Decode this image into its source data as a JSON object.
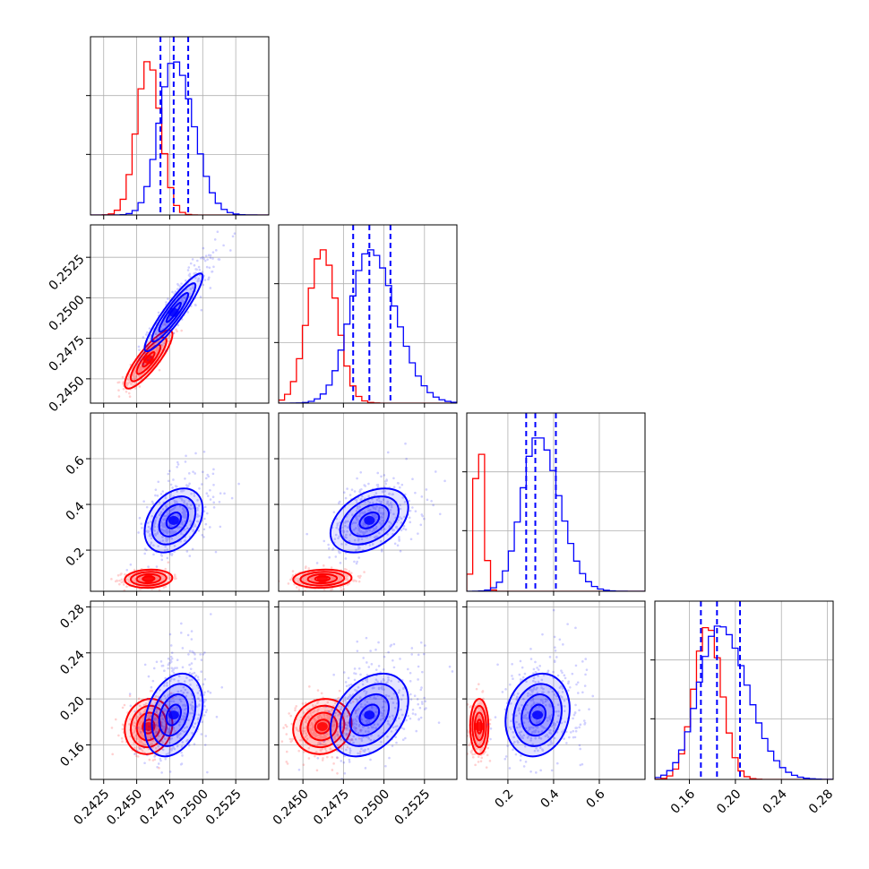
{
  "chart_data": {
    "type": "corner",
    "grid": true,
    "colors": {
      "red": "#ff0000",
      "blue": "#0000ff"
    },
    "parameters": [
      {
        "xlim": [
          0.2415,
          0.255
        ],
        "ticks": [
          0.2425,
          0.245,
          0.2475,
          0.25,
          0.2525
        ],
        "tick_labels": [
          "0.2425",
          "0.2450",
          "0.2475",
          "0.2500",
          "0.2525"
        ]
      },
      {
        "xlim": [
          0.2435,
          0.2545
        ],
        "ticks": [
          0.245,
          0.2475,
          0.25,
          0.2525
        ],
        "tick_labels": [
          "0.2450",
          "0.2475",
          "0.2500",
          "0.2525"
        ]
      },
      {
        "xlim": [
          0.02,
          0.8
        ],
        "ticks": [
          0.2,
          0.4,
          0.6
        ],
        "tick_labels": [
          "0.2",
          "0.4",
          "0.6"
        ]
      },
      {
        "xlim": [
          0.13,
          0.285
        ],
        "ticks": [
          0.16,
          0.2,
          0.24,
          0.28
        ],
        "tick_labels": [
          "0.16",
          "0.20",
          "0.24",
          "0.28"
        ]
      }
    ],
    "series": [
      {
        "color": "red",
        "mean": [
          0.2459,
          0.2462,
          0.075,
          0.176
        ],
        "std": [
          0.0009,
          0.0009,
          0.02,
          0.012
        ],
        "corr": [
          [
            1,
            0.85,
            0.1,
            0.1
          ],
          [
            0.85,
            1,
            0.1,
            0.1
          ],
          [
            0.1,
            0.1,
            1,
            0.0
          ],
          [
            0.1,
            0.1,
            0.0,
            1
          ]
        ]
      },
      {
        "color": "blue",
        "mean": [
          0.2478,
          0.2491,
          0.33,
          0.186
        ],
        "std": [
          0.0011,
          0.0012,
          0.07,
          0.018
        ],
        "corr": [
          [
            1,
            0.92,
            0.35,
            0.3
          ],
          [
            0.92,
            1,
            0.4,
            0.35
          ],
          [
            0.35,
            0.4,
            1,
            0.15
          ],
          [
            0.3,
            0.35,
            0.15,
            1
          ]
        ]
      }
    ],
    "quantile_lines": {
      "color": "blue",
      "style": "dashed",
      "quantiles": [
        0.16,
        0.5,
        0.84
      ],
      "values": [
        [
          0.2468,
          0.2478,
          0.2489
        ],
        [
          0.2481,
          0.2491,
          0.2504
        ],
        [
          0.28,
          0.32,
          0.41
        ],
        [
          0.17,
          0.184,
          0.204
        ]
      ]
    },
    "contour_levels_sigma": [
      0.5,
      1.0,
      1.5,
      2.0
    ],
    "scatter_points_per_panel": 400
  }
}
